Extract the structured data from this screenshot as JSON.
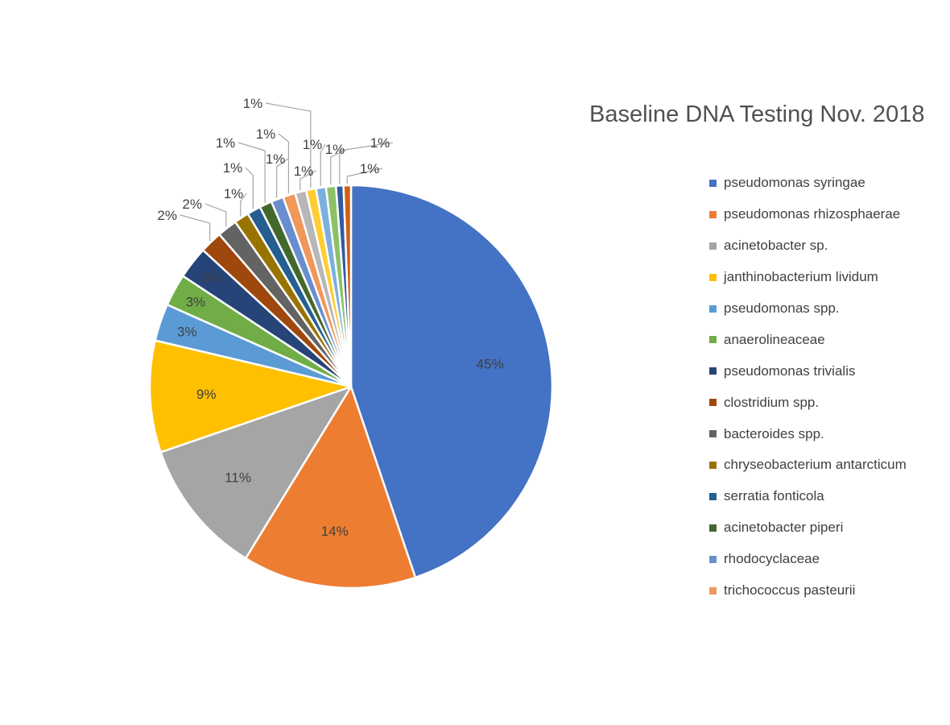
{
  "chart_data": {
    "type": "pie",
    "title": "Baseline DNA Testing Nov. 2018",
    "legend_position": "right",
    "slices": [
      {
        "label": "pseudomonas syringae",
        "value": 45,
        "display": "45%",
        "color": "#4472C4"
      },
      {
        "label": "pseudomonas rhizosphaerae",
        "value": 14,
        "display": "14%",
        "color": "#ED7D31"
      },
      {
        "label": "acinetobacter sp.",
        "value": 11,
        "display": "11%",
        "color": "#A5A5A5"
      },
      {
        "label": "janthinobacterium lividum",
        "value": 9,
        "display": "9%",
        "color": "#FFC000"
      },
      {
        "label": "pseudomonas spp.",
        "value": 3,
        "display": "3%",
        "color": "#5B9BD5"
      },
      {
        "label": "anaerolineaceae",
        "value": 2.6,
        "display": "3%",
        "color": "#70AD47"
      },
      {
        "label": "pseudomonas trivialis",
        "value": 2.6,
        "display": "3%",
        "color": "#264478"
      },
      {
        "label": "clostridium spp.",
        "value": 1.8,
        "display": "2%",
        "color": "#9E480E"
      },
      {
        "label": "bacteroides spp.",
        "value": 1.6,
        "display": "2%",
        "color": "#636363"
      },
      {
        "label": "chryseobacterium antarcticum",
        "value": 1.2,
        "display": "1%",
        "color": "#997300"
      },
      {
        "label": "serratia fonticola",
        "value": 1.1,
        "display": "1%",
        "color": "#255E91"
      },
      {
        "label": "acinetobacter piperi",
        "value": 1.0,
        "display": "1%",
        "color": "#43682B"
      },
      {
        "label": "rhodocyclaceae",
        "value": 1.0,
        "display": "1%",
        "color": "#698ED0"
      },
      {
        "label": "trichococcus pasteurii",
        "value": 1.0,
        "display": "1%",
        "color": "#F1975A"
      },
      {
        "value": 0.9,
        "display": "1%",
        "color": "#B7B7B7"
      },
      {
        "value": 0.8,
        "display": "1%",
        "color": "#FFCD33"
      },
      {
        "value": 0.8,
        "display": "1%",
        "color": "#7CAFDD"
      },
      {
        "value": 0.8,
        "display": "1%",
        "color": "#8CC168"
      },
      {
        "value": 0.6,
        "display": "1%",
        "color": "#335AA1"
      },
      {
        "value": 0.6,
        "display": "1%",
        "color": "#D26012"
      }
    ]
  }
}
